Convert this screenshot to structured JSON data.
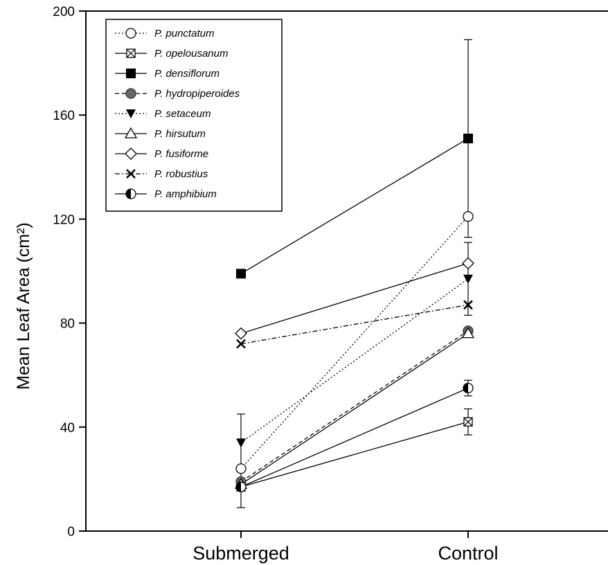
{
  "chart_data": {
    "type": "line",
    "title": "",
    "xlabel": "",
    "ylabel": "Mean Leaf Area (cm²)",
    "categories": [
      "Submerged",
      "Control"
    ],
    "ylim": [
      0,
      200
    ],
    "yticks": [
      0,
      40,
      80,
      120,
      160,
      200
    ],
    "grid": false,
    "legend_position": "top-left",
    "series": [
      {
        "name": "P. punctatum",
        "marker": "open-circle",
        "line": "dotted",
        "values": [
          24,
          121
        ],
        "errors": [
          null,
          null
        ]
      },
      {
        "name": "P. opelousanum",
        "marker": "crossed-square",
        "line": "solid",
        "values": [
          17,
          42
        ],
        "errors": [
          null,
          5
        ]
      },
      {
        "name": "P. densiflorum",
        "marker": "filled-square",
        "line": "solid",
        "values": [
          99,
          151
        ],
        "errors": [
          null,
          38
        ]
      },
      {
        "name": "P. hydropiperoides",
        "marker": "filled-circle-gray",
        "line": "dashed",
        "values": [
          19,
          77
        ],
        "errors": [
          null,
          null
        ]
      },
      {
        "name": "P. setaceum",
        "marker": "filled-triangle-down",
        "line": "dotted",
        "values": [
          34,
          97
        ],
        "errors": [
          11,
          14
        ]
      },
      {
        "name": "P. hirsutum",
        "marker": "open-triangle-up",
        "line": "solid",
        "values": [
          18,
          76
        ],
        "errors": [
          null,
          null
        ]
      },
      {
        "name": "P. fusiforme",
        "marker": "open-diamond",
        "line": "solid",
        "values": [
          76,
          103
        ],
        "errors": [
          null,
          null
        ]
      },
      {
        "name": "P. robustius",
        "marker": "x",
        "line": "dash-dot",
        "values": [
          72,
          87
        ],
        "errors": [
          null,
          null
        ]
      },
      {
        "name": "P. amphibium",
        "marker": "half-filled-circle",
        "line": "solid",
        "values": [
          17,
          55
        ],
        "errors": [
          8,
          3
        ]
      }
    ]
  }
}
